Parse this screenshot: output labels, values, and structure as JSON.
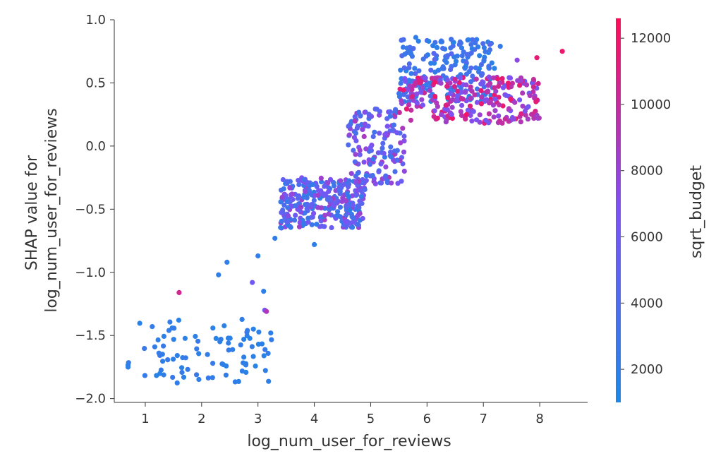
{
  "chart_data": {
    "type": "scatter",
    "title": "",
    "xlabel": "log_num_user_for_reviews",
    "ylabel": [
      "SHAP value for",
      "log_num_user_for_reviews"
    ],
    "xlim": [
      0.45,
      8.85
    ],
    "ylim": [
      -2.03,
      1.0
    ],
    "xticks": [
      1,
      2,
      3,
      4,
      5,
      6,
      7,
      8
    ],
    "yticks": [
      -2.0,
      -1.5,
      -1.0,
      -0.5,
      0.0,
      0.5,
      1.0
    ],
    "xtick_labels": [
      "1",
      "2",
      "3",
      "4",
      "5",
      "6",
      "7",
      "8"
    ],
    "ytick_labels": [
      "−2.0",
      "−1.5",
      "−1.0",
      "−0.5",
      "0.0",
      "0.5",
      "1.0"
    ],
    "grid": false,
    "colorbar": {
      "label": "sqrt_budget",
      "range": [
        1000,
        12600
      ],
      "ticks": [
        2000,
        4000,
        6000,
        8000,
        10000,
        12000
      ],
      "tick_labels": [
        "2000",
        "4000",
        "6000",
        "8000",
        "10000",
        "12000"
      ],
      "colormap": [
        "#1e88e5",
        "#7c52f5",
        "#ff0d57"
      ]
    },
    "clusters": [
      {
        "x_range": [
          0.68,
          3.25
        ],
        "y_range": [
          -1.88,
          -1.37
        ],
        "color_value_range": [
          1500,
          2600
        ],
        "approx_points": 90
      },
      {
        "x_range": [
          3.4,
          4.9
        ],
        "y_range": [
          -0.65,
          -0.25
        ],
        "color_value_range": [
          2000,
          8500
        ],
        "approx_points": 300
      },
      {
        "x_range": [
          4.6,
          5.6
        ],
        "y_range": [
          -0.3,
          0.3
        ],
        "color_value_range": [
          2500,
          9000
        ],
        "approx_points": 150
      },
      {
        "x_range": [
          5.5,
          7.2
        ],
        "y_range": [
          0.35,
          0.85
        ],
        "color_value_range": [
          1500,
          4500
        ],
        "approx_points": 200
      },
      {
        "x_range": [
          5.5,
          8.0
        ],
        "y_range": [
          0.18,
          0.55
        ],
        "color_value_range": [
          6000,
          12000
        ],
        "approx_points": 250
      }
    ],
    "points": [
      {
        "x": 1.6,
        "y": -1.16,
        "c": 10500
      },
      {
        "x": 2.3,
        "y": -1.02,
        "c": 2200
      },
      {
        "x": 2.45,
        "y": -0.92,
        "c": 2100
      },
      {
        "x": 2.9,
        "y": -1.08,
        "c": 6000
      },
      {
        "x": 3.0,
        "y": -0.87,
        "c": 2100
      },
      {
        "x": 3.1,
        "y": -1.15,
        "c": 2000
      },
      {
        "x": 3.12,
        "y": -1.3,
        "c": 6500
      },
      {
        "x": 3.15,
        "y": -1.31,
        "c": 9000
      },
      {
        "x": 4.0,
        "y": -0.78,
        "c": 2100
      },
      {
        "x": 3.3,
        "y": -0.73,
        "c": 2200
      },
      {
        "x": 7.95,
        "y": 0.7,
        "c": 11500
      },
      {
        "x": 8.4,
        "y": 0.75,
        "c": 11800
      },
      {
        "x": 7.6,
        "y": 0.68,
        "c": 7500
      },
      {
        "x": 5.8,
        "y": 0.86,
        "c": 2200
      },
      {
        "x": 7.3,
        "y": 0.79,
        "c": 2500
      }
    ]
  }
}
